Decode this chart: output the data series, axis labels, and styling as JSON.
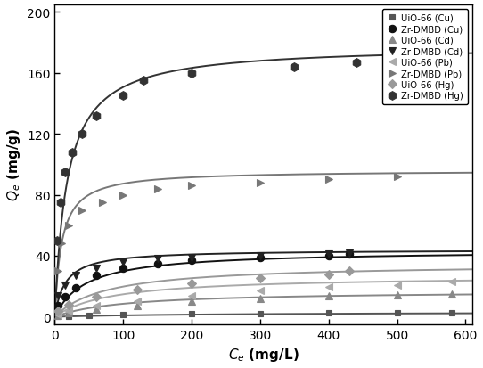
{
  "title": "",
  "xlabel": "$C_e$ (mg/L)",
  "ylabel": "$Q_e$ (mg/g)",
  "xlim": [
    0,
    610
  ],
  "ylim": [
    -5,
    205
  ],
  "xticks": [
    0,
    100,
    200,
    300,
    400,
    500,
    600
  ],
  "yticks": [
    0,
    40,
    80,
    120,
    160,
    200
  ],
  "series": [
    {
      "label": "UiO-66 (Cu)",
      "marker": "s",
      "color": "#555555",
      "linecolor": "#555555",
      "markersize": 5,
      "filled": true,
      "data_x": [
        5,
        20,
        50,
        100,
        200,
        300,
        400,
        500,
        580
      ],
      "data_y": [
        0.2,
        0.5,
        0.9,
        1.5,
        2.0,
        2.3,
        2.5,
        2.6,
        2.7
      ],
      "langmuir_qm": 3.2,
      "langmuir_kl": 0.004
    },
    {
      "label": "Zr-DMBD (Cu)",
      "marker": "o",
      "color": "#111111",
      "linecolor": "#111111",
      "markersize": 6,
      "filled": true,
      "data_x": [
        5,
        15,
        30,
        60,
        100,
        150,
        200,
        300,
        400,
        430
      ],
      "data_y": [
        7,
        13,
        19,
        27,
        32,
        35,
        37,
        39,
        40,
        41
      ],
      "langmuir_qm": 43.5,
      "langmuir_kl": 0.022
    },
    {
      "label": "UiO-66 (Cd)",
      "marker": "^",
      "color": "#888888",
      "linecolor": "#888888",
      "markersize": 6,
      "filled": true,
      "data_x": [
        5,
        20,
        60,
        120,
        200,
        300,
        400,
        500,
        580
      ],
      "data_y": [
        1.0,
        2.5,
        5.0,
        7.5,
        10.0,
        12.0,
        13.5,
        14.5,
        15.0
      ],
      "langmuir_qm": 17.0,
      "langmuir_kl": 0.01
    },
    {
      "label": "Zr-DMBD (Cd)",
      "marker": "v",
      "color": "#222222",
      "linecolor": "#222222",
      "markersize": 6,
      "filled": true,
      "data_x": [
        5,
        15,
        30,
        60,
        100,
        150,
        200,
        300,
        400,
        430
      ],
      "data_y": [
        14,
        21,
        27,
        32,
        36,
        38,
        39,
        40,
        41,
        42
      ],
      "langmuir_qm": 44.0,
      "langmuir_kl": 0.065
    },
    {
      "label": "UiO-66 (Pb)",
      "marker": "<",
      "color": "#aaaaaa",
      "linecolor": "#aaaaaa",
      "markersize": 6,
      "filled": true,
      "data_x": [
        5,
        20,
        60,
        120,
        200,
        300,
        400,
        500,
        580
      ],
      "data_y": [
        1.5,
        4.0,
        7.0,
        10.0,
        14.0,
        17.0,
        19.5,
        21.0,
        23.0
      ],
      "langmuir_qm": 27.0,
      "langmuir_kl": 0.012
    },
    {
      "label": "Zr-DMBD (Pb)",
      "marker": ">",
      "color": "#777777",
      "linecolor": "#777777",
      "markersize": 6,
      "filled": true,
      "data_x": [
        5,
        10,
        20,
        40,
        70,
        100,
        150,
        200,
        300,
        400,
        500
      ],
      "data_y": [
        30,
        48,
        60,
        70,
        75,
        80,
        84,
        86,
        88,
        90,
        92
      ],
      "langmuir_qm": 96.0,
      "langmuir_kl": 0.1
    },
    {
      "label": "UiO-66 (Hg)",
      "marker": "D",
      "color": "#999999",
      "linecolor": "#999999",
      "markersize": 5,
      "filled": true,
      "data_x": [
        5,
        20,
        60,
        120,
        200,
        300,
        400,
        430
      ],
      "data_y": [
        4.0,
        8.0,
        13.0,
        18.0,
        22.0,
        25.5,
        28.0,
        30.0
      ],
      "langmuir_qm": 35.0,
      "langmuir_kl": 0.013
    },
    {
      "label": "Zr-DMBD (Hg)",
      "marker": "h",
      "color": "#333333",
      "linecolor": "#333333",
      "markersize": 7,
      "filled": true,
      "data_x": [
        3,
        8,
        15,
        25,
        40,
        60,
        100,
        130,
        200,
        350,
        440
      ],
      "data_y": [
        50,
        75,
        95,
        108,
        120,
        132,
        145,
        155,
        160,
        164,
        167
      ],
      "langmuir_qm": 178.0,
      "langmuir_kl": 0.055
    }
  ],
  "figsize": [
    5.42,
    4.14
  ],
  "dpi": 100,
  "bg_color": "#ffffff"
}
